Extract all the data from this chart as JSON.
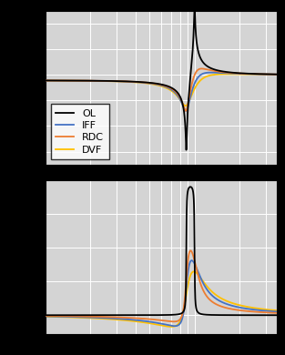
{
  "colors": [
    "#000000",
    "#4472C4",
    "#ED7D31",
    "#FFC000"
  ],
  "legend_labels": [
    "OL",
    "IFF",
    "RDC",
    "DVF"
  ],
  "fig_bg": "#000000",
  "axes_bg": "#d4d4d4",
  "grid_color": "#ffffff",
  "lw": 1.3
}
